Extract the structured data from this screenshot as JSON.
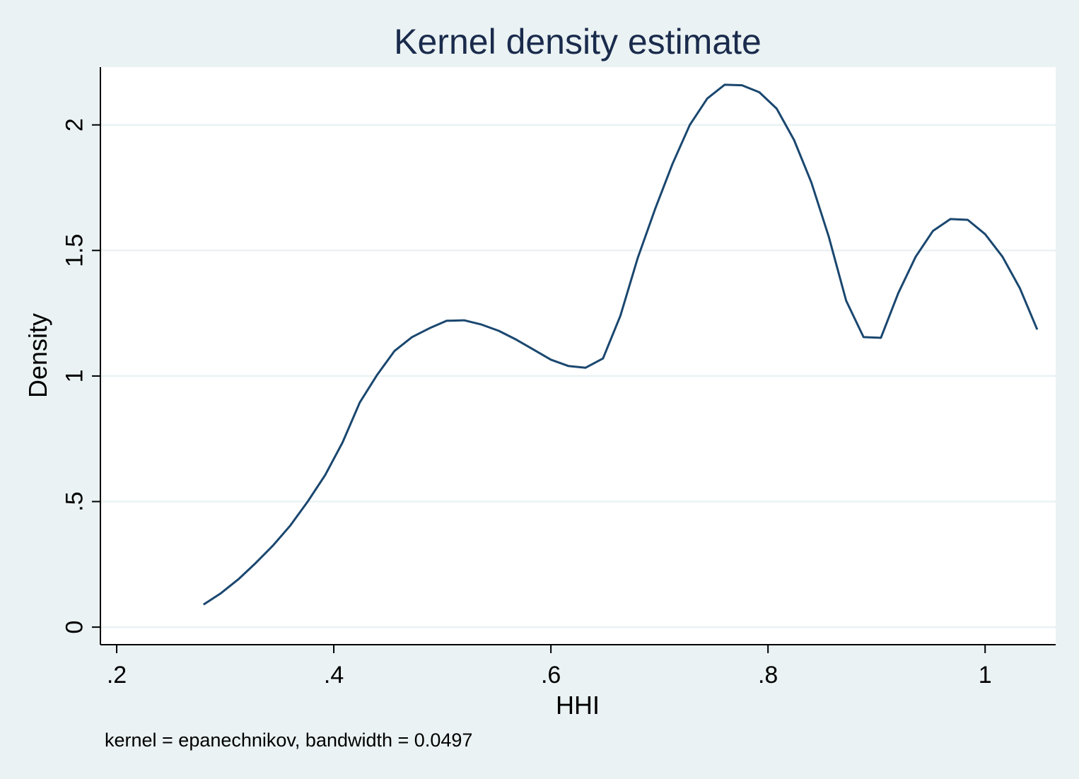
{
  "chart_data": {
    "type": "line",
    "title": "Kernel density estimate",
    "xlabel": "HHI",
    "ylabel": "Density",
    "note": "kernel = epanechnikov, bandwidth = 0.0497",
    "xlim": [
      0.185,
      1.065
    ],
    "ylim": [
      -0.07,
      2.23
    ],
    "x_ticks": [
      {
        "value": 0.2,
        "label": ".2"
      },
      {
        "value": 0.4,
        "label": ".4"
      },
      {
        "value": 0.6,
        "label": ".6"
      },
      {
        "value": 0.8,
        "label": ".8"
      },
      {
        "value": 1.0,
        "label": "1"
      }
    ],
    "y_ticks": [
      {
        "value": 0,
        "label": "0"
      },
      {
        "value": 0.5,
        "label": ".5"
      },
      {
        "value": 1,
        "label": "1"
      },
      {
        "value": 1.5,
        "label": "1.5"
      },
      {
        "value": 2,
        "label": "2"
      }
    ],
    "grid": true,
    "series": [
      {
        "color": "#1a476f",
        "x": [
          0.28,
          0.296,
          0.312,
          0.328,
          0.344,
          0.36,
          0.376,
          0.392,
          0.408,
          0.424,
          0.44,
          0.456,
          0.472,
          0.488,
          0.504,
          0.52,
          0.536,
          0.552,
          0.568,
          0.584,
          0.6,
          0.616,
          0.632,
          0.648,
          0.664,
          0.68,
          0.696,
          0.712,
          0.728,
          0.744,
          0.76,
          0.776,
          0.792,
          0.808,
          0.824,
          0.84,
          0.856,
          0.872,
          0.888,
          0.904,
          0.92,
          0.936,
          0.952,
          0.968,
          0.984,
          1.0,
          1.016,
          1.032,
          1.048
        ],
        "y": [
          0.09,
          0.135,
          0.19,
          0.255,
          0.325,
          0.405,
          0.5,
          0.605,
          0.735,
          0.895,
          1.005,
          1.1,
          1.155,
          1.19,
          1.22,
          1.222,
          1.205,
          1.18,
          1.145,
          1.105,
          1.065,
          1.04,
          1.033,
          1.07,
          1.24,
          1.47,
          1.665,
          1.845,
          2.0,
          2.105,
          2.16,
          2.158,
          2.13,
          2.065,
          1.94,
          1.77,
          1.555,
          1.3,
          1.155,
          1.152,
          1.33,
          1.475,
          1.578,
          1.625,
          1.622,
          1.565,
          1.475,
          1.35,
          1.185
        ]
      }
    ]
  }
}
